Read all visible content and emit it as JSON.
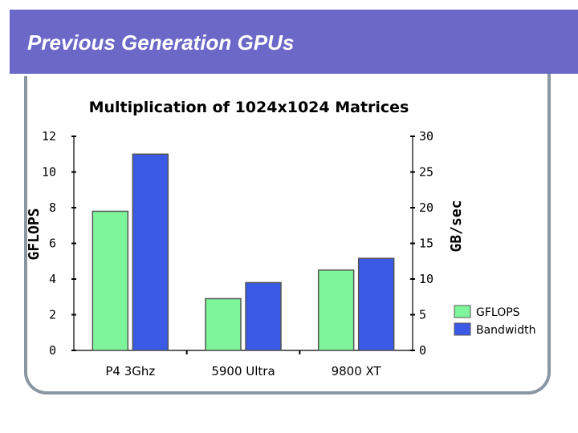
{
  "slide": {
    "title": "Previous Generation GPUs"
  },
  "colors": {
    "title_bar": "#6b68c8",
    "gflops": "#7ef59a",
    "bandwidth": "#3a5ae6",
    "bar_stroke": "#555555",
    "frame": "#8a97a3"
  },
  "chart_data": {
    "type": "bar",
    "title": "Multiplication of 1024x1024 Matrices",
    "categories": [
      "P4 3Ghz",
      "5900 Ultra",
      "9800 XT"
    ],
    "series": [
      {
        "name": "GFLOPS",
        "axis": "left",
        "values": [
          7.8,
          2.9,
          4.5
        ]
      },
      {
        "name": "Bandwidth",
        "axis": "right",
        "values": [
          27.5,
          9.5,
          12.9
        ]
      }
    ],
    "ylabel_left": "GFLOPS",
    "ylabel_right": "GB/sec",
    "ylim_left": [
      0,
      12
    ],
    "ylim_right": [
      0,
      30
    ],
    "yticks_left": [
      "0",
      "2",
      "4",
      "6",
      "8",
      "10",
      "12"
    ],
    "yticks_right": [
      "0",
      "5",
      "10",
      "15",
      "20",
      "25",
      "30"
    ],
    "legend": [
      "GFLOPS",
      "Bandwidth"
    ],
    "legend_position": "right",
    "grid": false
  }
}
